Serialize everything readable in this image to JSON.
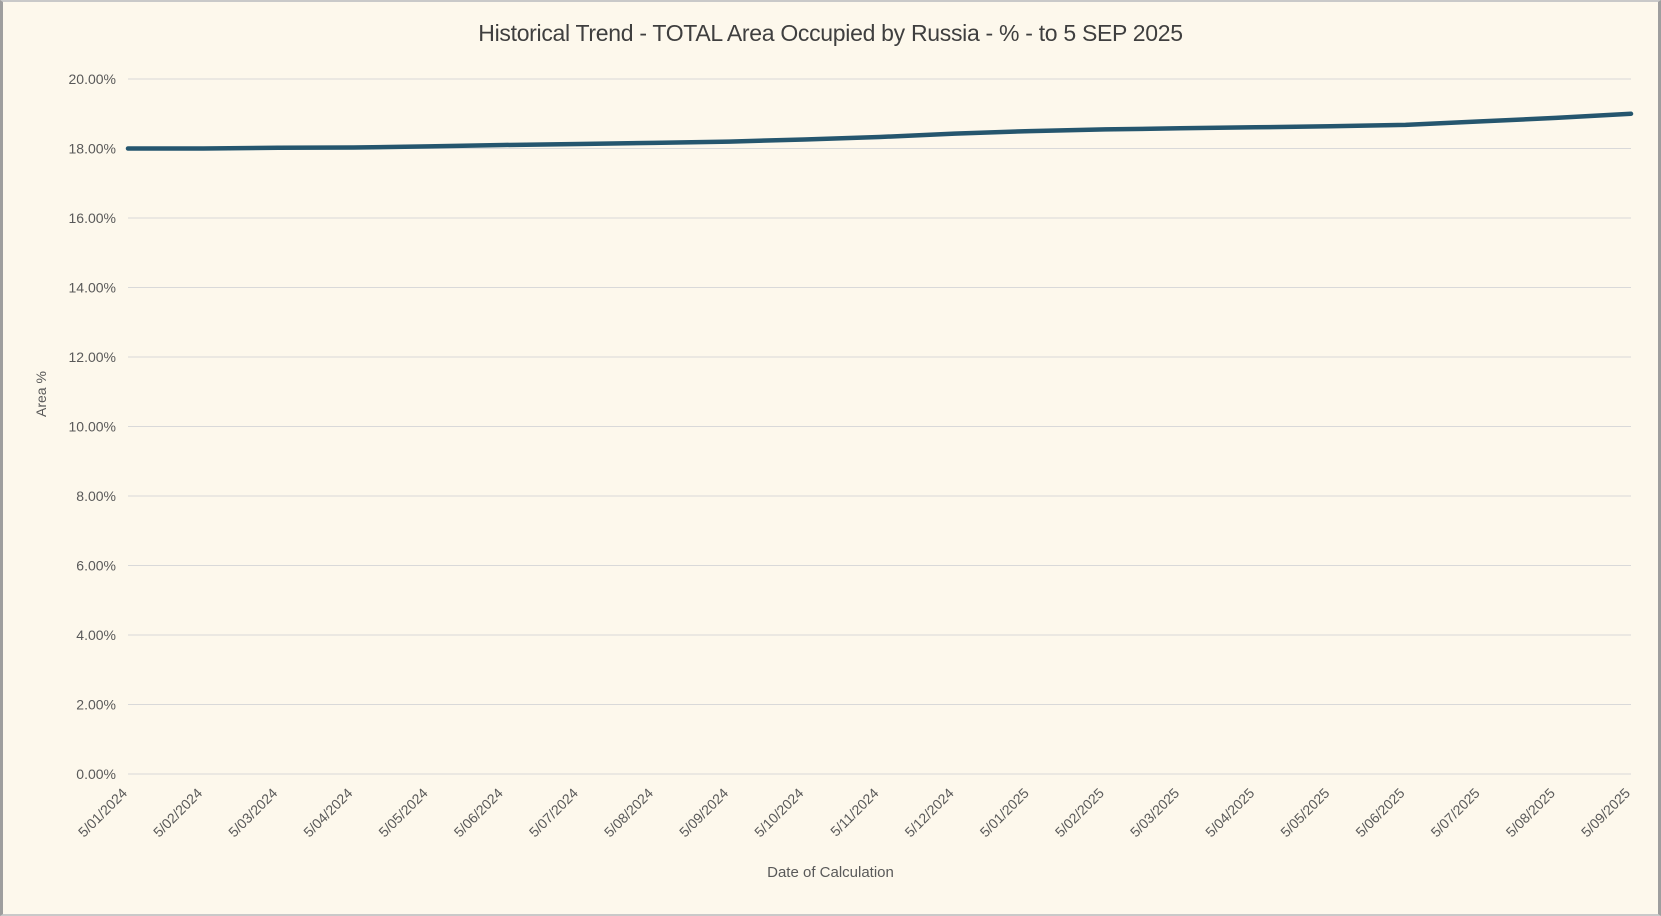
{
  "chart_data": {
    "type": "line",
    "title": "Historical Trend - TOTAL Area Occupied by Russia - % - to 5 SEP 2025",
    "xlabel": "Date of Calculation",
    "ylabel": "Area %",
    "categories": [
      "5/01/2024",
      "5/02/2024",
      "5/03/2024",
      "5/04/2024",
      "5/05/2024",
      "5/06/2024",
      "5/07/2024",
      "5/08/2024",
      "5/09/2024",
      "5/10/2024",
      "5/11/2024",
      "5/12/2024",
      "5/01/2025",
      "5/02/2025",
      "5/03/2025",
      "5/04/2025",
      "5/05/2025",
      "5/06/2025",
      "5/07/2025",
      "5/08/2025",
      "5/09/2025"
    ],
    "series": [
      {
        "name": "TOTAL Area Occupied by Russia %",
        "values": [
          18.0,
          18.0,
          18.02,
          18.03,
          18.06,
          18.1,
          18.13,
          18.16,
          18.2,
          18.26,
          18.33,
          18.43,
          18.5,
          18.55,
          18.58,
          18.61,
          18.64,
          18.68,
          18.78,
          18.88,
          19.0
        ]
      }
    ],
    "ylim": [
      0,
      20
    ],
    "ytick_step": 2,
    "ytick_suffix": "%",
    "ytick_decimals": 2,
    "x_label_rotation_deg": -45,
    "grid": "horizontal",
    "legend": "none",
    "colors": {
      "line": "#25566E",
      "background": "#FDF8EC",
      "gridline": "#D9D9D9",
      "title_text": "#3F3F3F",
      "axis_text": "#595959"
    }
  }
}
